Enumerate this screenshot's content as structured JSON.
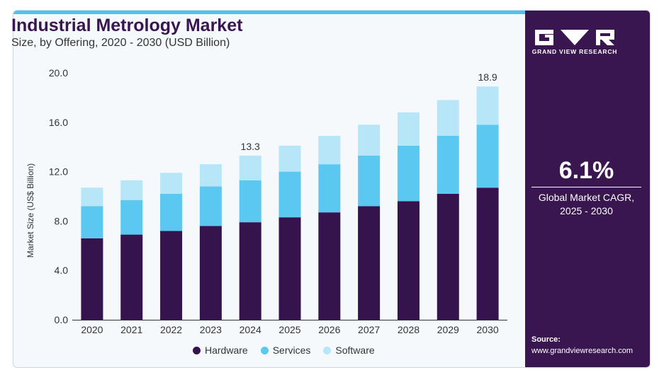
{
  "header": {
    "title": "Industrial Metrology Market",
    "subtitle": "Size, by Offering, 2020 - 2030 (USD Billion)"
  },
  "brand": {
    "name": "GRAND VIEW RESEARCH"
  },
  "cagr": {
    "value": "6.1%",
    "label_line1": "Global Market CAGR,",
    "label_line2": "2025 - 2030"
  },
  "source": {
    "label": "Source:",
    "url": "www.grandviewresearch.com"
  },
  "colors": {
    "brand_dark": "#3a1650",
    "hardware": "#35134c",
    "services": "#5bc8f1",
    "software": "#b7e6f9",
    "accent_bar": "#4fc3ef"
  },
  "chart_data": {
    "type": "bar",
    "stacked": true,
    "title": "Industrial Metrology Market",
    "subtitle": "Size, by Offering, 2020 - 2030 (USD Billion)",
    "xlabel": "",
    "ylabel": "Market Size (US$ Billion)",
    "ylim": [
      0,
      20
    ],
    "yticks": [
      "0.0",
      "4.0",
      "8.0",
      "12.0",
      "16.0",
      "20.0"
    ],
    "categories": [
      "2020",
      "2021",
      "2022",
      "2023",
      "2024",
      "2025",
      "2026",
      "2027",
      "2028",
      "2029",
      "2030"
    ],
    "series": [
      {
        "name": "Hardware",
        "color": "#35134c",
        "values": [
          6.6,
          6.9,
          7.2,
          7.6,
          7.9,
          8.3,
          8.7,
          9.2,
          9.6,
          10.2,
          10.7
        ]
      },
      {
        "name": "Services",
        "color": "#5bc8f1",
        "values": [
          2.6,
          2.8,
          3.0,
          3.2,
          3.4,
          3.7,
          3.9,
          4.1,
          4.5,
          4.7,
          5.1
        ]
      },
      {
        "name": "Software",
        "color": "#b7e6f9",
        "values": [
          1.5,
          1.6,
          1.7,
          1.8,
          2.0,
          2.1,
          2.3,
          2.5,
          2.7,
          2.9,
          3.1
        ]
      }
    ],
    "annotations": [
      {
        "category": "2024",
        "text": "13.3"
      },
      {
        "category": "2030",
        "text": "18.9"
      }
    ],
    "legend": "bottom",
    "grid": false
  }
}
